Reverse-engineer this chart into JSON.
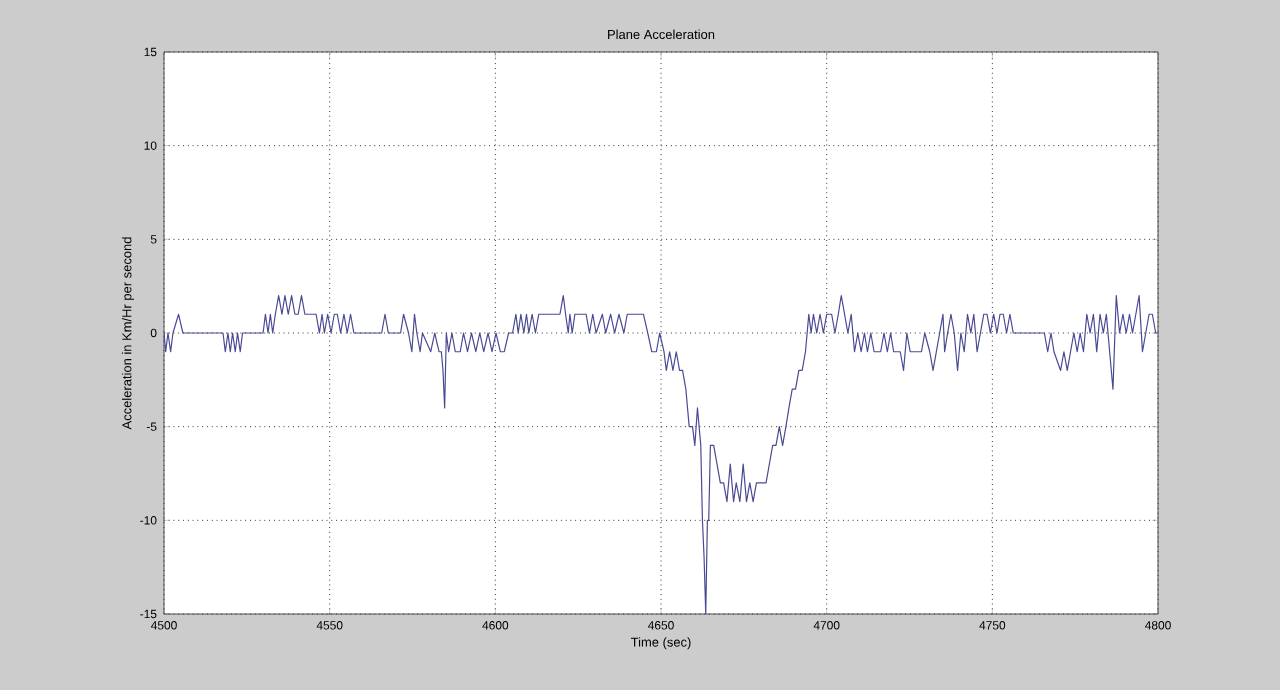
{
  "chart_data": {
    "type": "line",
    "title": "Plane Acceleration",
    "xlabel": "Time (sec)",
    "ylabel": "Acceleration in Km/Hr per second",
    "xlim": [
      4500,
      4800
    ],
    "ylim": [
      -15,
      15
    ],
    "xticks": [
      4500,
      4550,
      4600,
      4650,
      4700,
      4750,
      4800
    ],
    "yticks": [
      -15,
      -10,
      -5,
      0,
      5,
      10,
      15
    ],
    "grid": true,
    "line_style": "solid",
    "marker": "none",
    "series": [
      {
        "color": "#4a4a94",
        "x": [
          4500,
          4500.5,
          4501.2,
          4502,
          4502.7,
          4504.4,
          4505.7,
          4506.4,
          4517.8,
          4518.5,
          4519.3,
          4520,
          4520.7,
          4521.5,
          4522.2,
          4523,
          4523.7,
          4529.9,
          4530.6,
          4531.4,
          4532.1,
          4532.8,
          4533.6,
          4534.6,
          4535.6,
          4536.5,
          4537.5,
          4538.5,
          4539.5,
          4540.5,
          4541.5,
          4542.5,
          4545.9,
          4546.9,
          4547.7,
          4548.4,
          4549.4,
          4550.4,
          4551.4,
          4552.3,
          4553.3,
          4554.3,
          4555.3,
          4556.3,
          4557.3,
          4558.3,
          4565.7,
          4566.7,
          4567.7,
          4571.4,
          4572.3,
          4573.8,
          4574.8,
          4575.6,
          4576.3,
          4577.3,
          4578,
          4580.5,
          4581.7,
          4583,
          4583.7,
          4584.2,
          4584.7,
          4585.2,
          4585.9,
          4586.9,
          4587.9,
          4589.4,
          4590.4,
          4591.6,
          4592.8,
          4594.1,
          4595.3,
          4596.5,
          4597.8,
          4599,
          4600.2,
          4601.5,
          4602.7,
          4604,
          4605.2,
          4606.2,
          4606.9,
          4607.7,
          4608.6,
          4609.4,
          4610.1,
          4611.1,
          4612.1,
          4613.1,
          4615.6,
          4619.5,
          4620.5,
          4621.2,
          4622,
          4622.5,
          4623.2,
          4624,
          4627.4,
          4628.4,
          4629.4,
          4630.4,
          4632.3,
          4633.3,
          4634.8,
          4636,
          4637.3,
          4638.8,
          4639.8,
          4644.7,
          4646,
          4647.2,
          4648.6,
          4649.6,
          4650.9,
          4651.6,
          4652.6,
          4653.6,
          4654.6,
          4655.6,
          4656.5,
          4657.5,
          4658.5,
          4659.5,
          4660.2,
          4661,
          4662,
          4662.5,
          4663,
          4663.5,
          4664,
          4664.4,
          4664.9,
          4665.9,
          4666.9,
          4667.9,
          4668.9,
          4669.9,
          4670.9,
          4671.9,
          4672.7,
          4673.8,
          4674.8,
          4675.8,
          4676.8,
          4677.8,
          4678.8,
          4679.8,
          4681.7,
          4682.7,
          4683.7,
          4684.7,
          4685.7,
          4686.7,
          4687.7,
          4688.6,
          4689.6,
          4690.6,
          4691.6,
          4692.6,
          4693.6,
          4694.1,
          4694.6,
          4695.3,
          4696,
          4697,
          4698,
          4699,
          4700,
          4701.5,
          4702.5,
          4703.5,
          4704.4,
          4705.4,
          4706.4,
          4707.4,
          4708.4,
          4709.4,
          4710.4,
          4711.4,
          4712.3,
          4713.3,
          4714.3,
          4716.3,
          4717.3,
          4718.3,
          4719.3,
          4720.2,
          4722.2,
          4723.2,
          4724.2,
          4725.2,
          4728.6,
          4729.6,
          4731.1,
          4732.1,
          4733.1,
          4734.1,
          4735.1,
          4735.6,
          4736.5,
          4737.5,
          4738.5,
          4739.5,
          4740.5,
          4741.5,
          4742.5,
          4743.5,
          4744.4,
          4745.4,
          4746.4,
          4747.4,
          4748.4,
          4749.4,
          4750.4,
          4751.4,
          4752.3,
          4753.3,
          4754.3,
          4755.3,
          4756.3,
          4765.7,
          4766.7,
          4767.7,
          4768.6,
          4770.6,
          4771.6,
          4772.6,
          4773.6,
          4774.6,
          4775.6,
          4776.5,
          4777.5,
          4778.5,
          4779.5,
          4780.5,
          4781.5,
          4782.5,
          4783.5,
          4784.4,
          4785.4,
          4786.4,
          4787.4,
          4788.4,
          4789.4,
          4790.4,
          4791.4,
          4792.3,
          4793.3,
          4794.3,
          4795.3,
          4796.3,
          4797.3,
          4798.3,
          4799.3,
          4800
        ],
        "values": [
          0,
          -1,
          0,
          -1,
          0,
          1,
          0,
          0,
          0,
          -1,
          0,
          -1,
          0,
          -1,
          0,
          -1,
          0,
          0,
          1,
          0,
          1,
          0,
          1,
          2,
          1,
          2,
          1,
          2,
          1,
          1,
          2,
          1,
          1,
          0,
          1,
          0,
          1,
          0,
          1,
          1,
          0,
          1,
          0,
          1,
          0,
          0,
          0,
          1,
          0,
          0,
          1,
          0,
          -1,
          1,
          0,
          -1,
          0,
          -1,
          0,
          -1,
          -1,
          -2,
          -4,
          0,
          -1,
          0,
          -1,
          -1,
          0,
          -1,
          0,
          -1,
          0,
          -1,
          0,
          -1,
          0,
          -1,
          -1,
          0,
          0,
          1,
          0,
          1,
          0,
          1,
          0,
          1,
          0,
          1,
          1,
          1,
          2,
          1,
          0,
          1,
          0,
          1,
          1,
          0,
          1,
          0,
          1,
          0,
          1,
          0,
          1,
          0,
          1,
          1,
          0,
          -1,
          -1,
          0,
          -1,
          -2,
          -1,
          -2,
          -1,
          -2,
          -2,
          -3,
          -5,
          -5,
          -6,
          -4,
          -6,
          -10,
          -12,
          -15,
          -10,
          -10,
          -6,
          -6,
          -7,
          -8,
          -8,
          -9,
          -7,
          -9,
          -8,
          -9,
          -7,
          -9,
          -8,
          -9,
          -8,
          -8,
          -8,
          -7,
          -6,
          -6,
          -5,
          -6,
          -5,
          -4,
          -3,
          -3,
          -2,
          -2,
          -1,
          0,
          1,
          0,
          1,
          0,
          1,
          0,
          1,
          1,
          0,
          1,
          2,
          1,
          0,
          1,
          -1,
          0,
          -1,
          0,
          -1,
          0,
          -1,
          -1,
          0,
          -1,
          0,
          -1,
          -1,
          -2,
          0,
          -1,
          -1,
          0,
          -1,
          -2,
          -1,
          0,
          1,
          -1,
          0,
          1,
          0,
          -2,
          0,
          -1,
          1,
          0,
          1,
          -1,
          0,
          1,
          1,
          0,
          1,
          0,
          1,
          1,
          0,
          1,
          0,
          0,
          -1,
          0,
          -1,
          -2,
          -1,
          -2,
          -1,
          0,
          -1,
          0,
          -1,
          1,
          0,
          1,
          -1,
          1,
          0,
          1,
          -1,
          -3,
          2,
          0,
          1,
          0,
          1,
          0,
          1,
          2,
          -1,
          0,
          1,
          1,
          0,
          0
        ]
      }
    ]
  }
}
